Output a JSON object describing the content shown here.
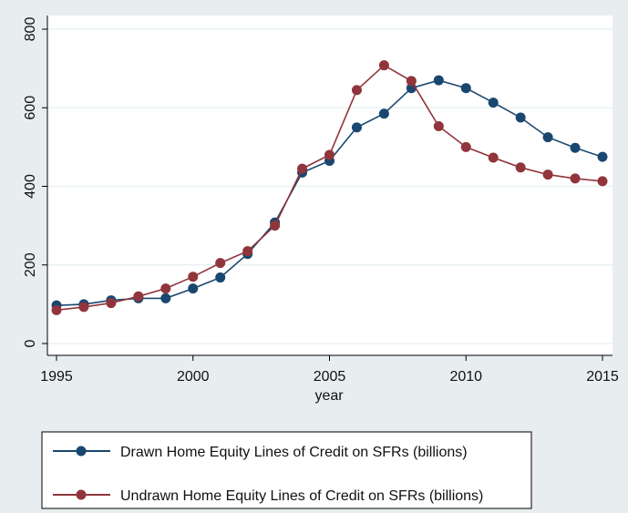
{
  "chart_data": {
    "type": "line",
    "title": "",
    "xlabel": "year",
    "ylabel": "",
    "xlim": [
      1995,
      2015
    ],
    "ylim": [
      0,
      800
    ],
    "x_ticks": [
      1995,
      2000,
      2005,
      2010,
      2015
    ],
    "y_ticks": [
      0,
      200,
      400,
      600,
      800
    ],
    "grid": "horizontal",
    "legend_position": "bottom",
    "x": [
      1995,
      1996,
      1997,
      1998,
      1999,
      2000,
      2001,
      2002,
      2003,
      2004,
      2005,
      2006,
      2007,
      2008,
      2009,
      2010,
      2011,
      2012,
      2013,
      2014,
      2015
    ],
    "series": [
      {
        "name": "Drawn Home Equity Lines of Credit on SFRs (billions)",
        "color": "#1a476f",
        "values": [
          97,
          100,
          110,
          115,
          115,
          140,
          168,
          228,
          308,
          435,
          465,
          550,
          585,
          650,
          670,
          650,
          613,
          575,
          525,
          498,
          475
        ]
      },
      {
        "name": "Undrawn Home Equity Lines of Credit on SFRs (billions)",
        "color": "#90353b",
        "values": [
          85,
          93,
          103,
          120,
          140,
          170,
          205,
          235,
          300,
          445,
          480,
          645,
          708,
          668,
          553,
          500,
          473,
          448,
          430,
          420,
          413
        ]
      }
    ]
  }
}
